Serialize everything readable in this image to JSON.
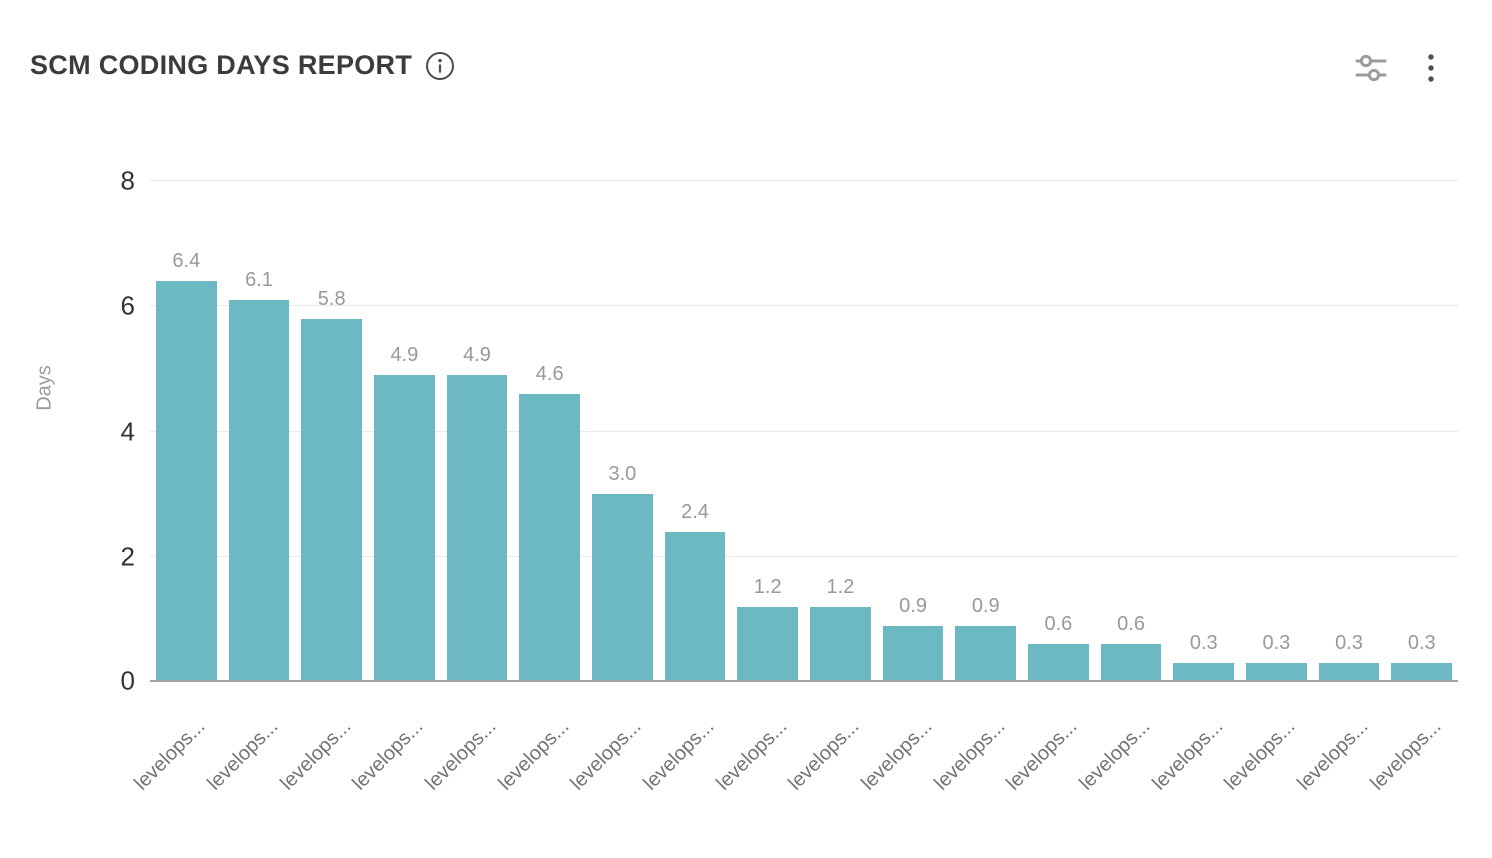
{
  "header": {
    "title": "SCM CODING DAYS REPORT"
  },
  "chart_data": {
    "type": "bar",
    "title": "SCM CODING DAYS REPORT",
    "categories": [
      "levelops...",
      "levelops...",
      "levelops...",
      "levelops...",
      "levelops...",
      "levelops...",
      "levelops...",
      "levelops...",
      "levelops...",
      "levelops...",
      "levelops...",
      "levelops...",
      "levelops...",
      "levelops...",
      "levelops...",
      "levelops...",
      "levelops...",
      "levelops..."
    ],
    "values": [
      6.4,
      6.1,
      5.8,
      4.9,
      4.9,
      4.6,
      3.0,
      2.4,
      1.2,
      1.2,
      0.9,
      0.9,
      0.6,
      0.6,
      0.3,
      0.3,
      0.3,
      0.3
    ],
    "xlabel": "",
    "ylabel": "Days",
    "ylim": [
      0,
      8
    ],
    "yticks": [
      0,
      2,
      4,
      6,
      8
    ],
    "grid": true,
    "legend": "none",
    "bar_color": "#6CB9C4",
    "value_label_color": "#999999",
    "axis_label_color": "#333333"
  }
}
